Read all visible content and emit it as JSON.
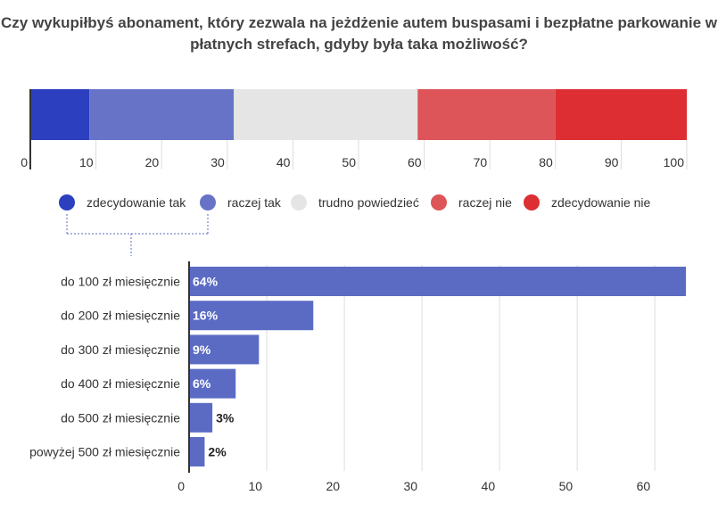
{
  "title": {
    "line1": "Czy wykupiłbyś abonament, który zezwala na jeżdżenie autem buspasami i bezpłatne parkowanie w",
    "line2": "płatnych strefach, gdyby była taka możliwość?"
  },
  "chart_data": [
    {
      "type": "bar",
      "orientation": "horizontal-stacked",
      "segments": [
        {
          "name": "zdecydowanie tak",
          "value": 9,
          "color": "#2b3fbf"
        },
        {
          "name": "raczej tak",
          "value": 22,
          "color": "#6673c6"
        },
        {
          "name": "trudno powiedzieć",
          "value": 28,
          "color": "#e5e5e5"
        },
        {
          "name": "raczej nie",
          "value": 21,
          "color": "#dd5558"
        },
        {
          "name": "zdecydowanie nie",
          "value": 20,
          "color": "#dd2e33"
        }
      ],
      "xlim": [
        0,
        100
      ],
      "xticks": [
        "0",
        "10",
        "20",
        "30",
        "40",
        "50",
        "60",
        "70",
        "80",
        "90",
        "100"
      ],
      "grid": true,
      "legend": "bottom"
    },
    {
      "type": "bar",
      "orientation": "horizontal",
      "categories": [
        "do 100 zł miesięcznie",
        "do 200 zł miesięcznie",
        "do 300 zł miesięcznie",
        "do 400 zł miesięcznie",
        "do 500 zł miesięcznie",
        "powyżej 500 zł miesięcznie"
      ],
      "values": [
        64,
        16,
        9,
        6,
        3,
        2
      ],
      "labels": [
        "64%",
        "16%",
        "9%",
        "6%",
        "3%",
        "2%"
      ],
      "color": "#5b6bc4",
      "xlim": [
        0,
        64
      ],
      "xticks": [
        "0",
        "10",
        "20",
        "30",
        "40",
        "50",
        "60"
      ],
      "grid": true
    }
  ]
}
